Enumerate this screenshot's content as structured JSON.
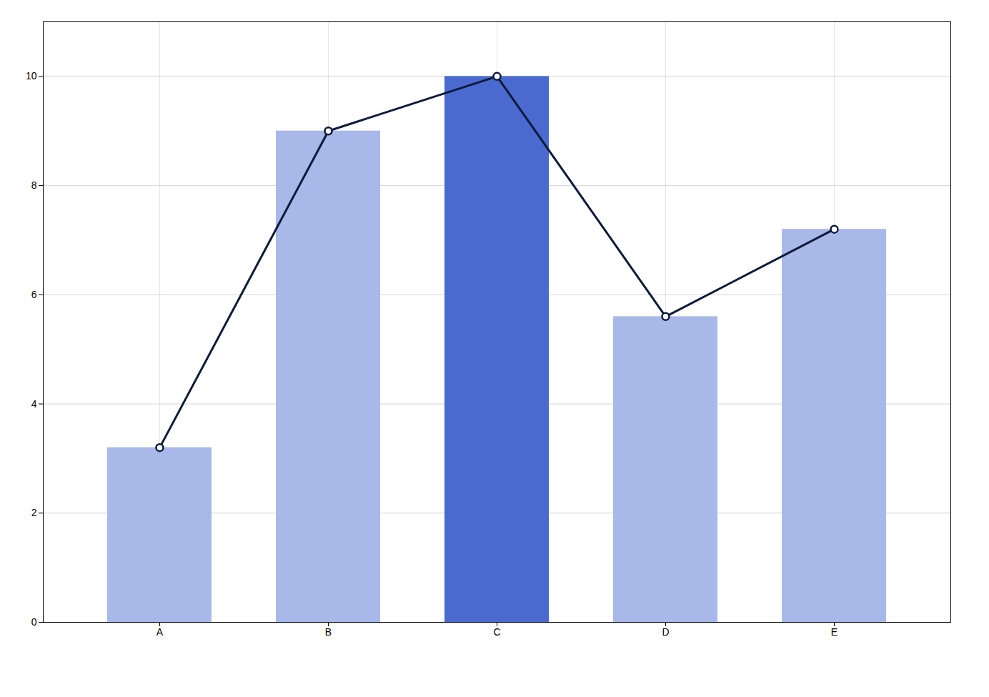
{
  "chart_data": {
    "type": "bar",
    "categories": [
      "A",
      "B",
      "C",
      "D",
      "E"
    ],
    "series": [
      {
        "type": "bar",
        "colors": [
          "#a8b8e8",
          "#a8b8e8",
          "#4a6ad0",
          "#a8b8e8",
          "#a8b8e8"
        ],
        "values": [
          3.2,
          9.0,
          10.0,
          5.6,
          7.2
        ]
      },
      {
        "type": "line",
        "color": "#0d1a3a",
        "marker": "o",
        "values": [
          3.2,
          9.0,
          10.0,
          5.6,
          7.2
        ]
      }
    ],
    "ylim": [
      0,
      11
    ],
    "yticks": [
      0,
      2,
      4,
      6,
      8,
      10
    ],
    "grid": true
  }
}
